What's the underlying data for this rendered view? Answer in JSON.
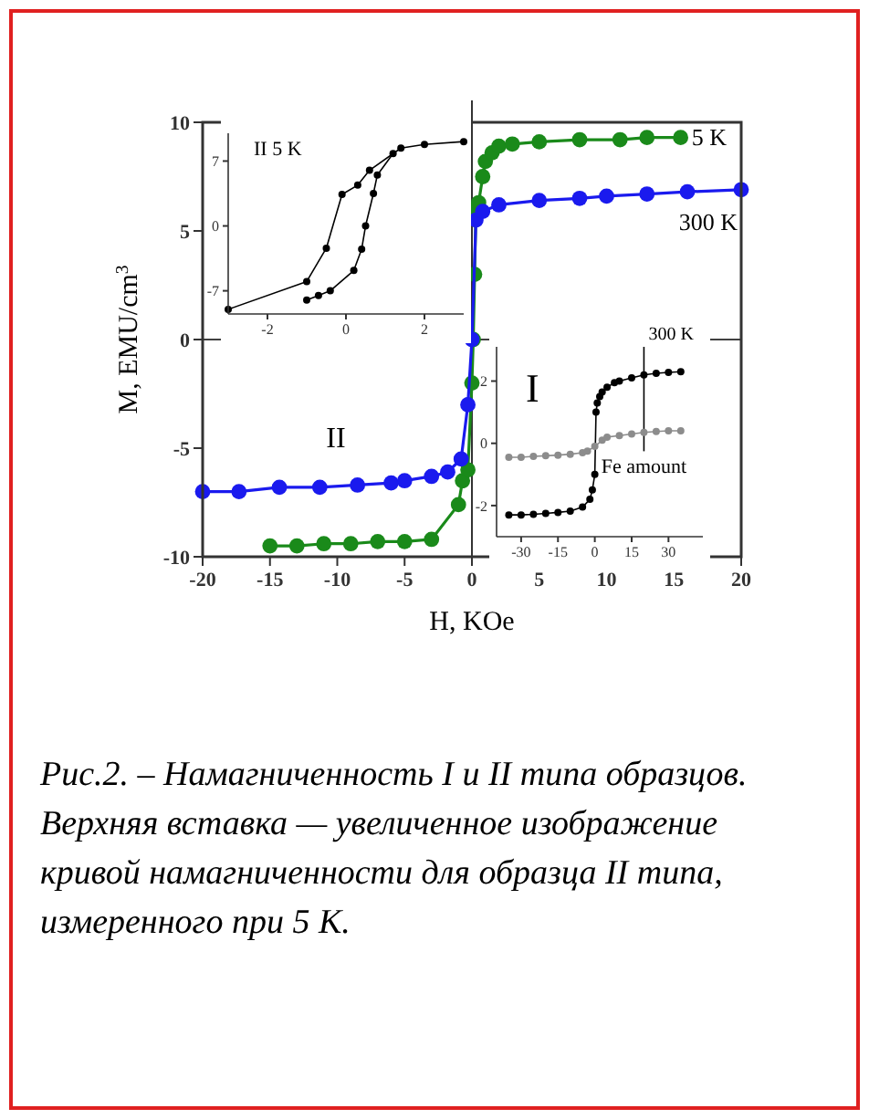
{
  "chart_data": [
    {
      "type": "line",
      "xlabel": "H, KOe",
      "ylabel": "M, EMU/cm$^{3}$",
      "xlim": [
        -20,
        20
      ],
      "ylim": [
        -10,
        10
      ],
      "xticks": [
        -20,
        -15,
        -10,
        -5,
        0,
        5,
        10,
        15,
        20
      ],
      "yticks": [
        -10,
        -5,
        0,
        5,
        10
      ],
      "marker": "circle",
      "ref_lines": [
        {
          "axis": "x",
          "value": 0
        },
        {
          "axis": "y",
          "value": 0
        }
      ],
      "annotations": [
        "II",
        "Рис.2. – Намагниченность I и II типа образцов. Верхняя вставка — увеличенное изображение кривой намагниченности для образца II типа, измеренного при 5 K."
      ],
      "series": [
        {
          "name": "5 K",
          "color": "#1a8a1a",
          "x": [
            -15,
            -13,
            -11,
            -9,
            -7,
            -5,
            -3,
            -1,
            -0.7,
            -0.3,
            0,
            0.1,
            0.2,
            0.3,
            0.5,
            0.8,
            1,
            1.5,
            2,
            3,
            5,
            8,
            11,
            13,
            15.5
          ],
          "values": [
            -9.5,
            -9.5,
            -9.4,
            -9.4,
            -9.3,
            -9.3,
            -9.2,
            -7.6,
            -6.5,
            -6,
            -2,
            0,
            3,
            6.0,
            6.3,
            7.5,
            8.2,
            8.6,
            8.9,
            9.0,
            9.1,
            9.2,
            9.2,
            9.3,
            9.3
          ]
        },
        {
          "name": "300 K",
          "color": "#1a1aee",
          "x": [
            -20,
            -17.3,
            -14.3,
            -11.3,
            -8.5,
            -6,
            -5,
            -3,
            -1.8,
            -0.8,
            -0.3,
            0,
            0.3,
            0.8,
            2,
            5,
            8,
            10,
            13,
            16,
            20
          ],
          "values": [
            -7,
            -7,
            -6.8,
            -6.8,
            -6.7,
            -6.6,
            -6.5,
            -6.3,
            -6.1,
            -5.5,
            -3,
            0,
            5.5,
            5.9,
            6.2,
            6.4,
            6.5,
            6.6,
            6.7,
            6.8,
            6.9
          ]
        }
      ]
    },
    {
      "type": "line",
      "title": "II  5 K",
      "xlim": [
        -3,
        3
      ],
      "ylim": [
        -9.5,
        10
      ],
      "xticks": [
        -2,
        0,
        2
      ],
      "yticks": [
        -7,
        0,
        7
      ],
      "marker": "circle",
      "series": [
        {
          "color": "#000000",
          "x": [
            -3,
            -1,
            -0.5,
            -0.1,
            0.3,
            0.6,
            1.4,
            2,
            3
          ],
          "values": [
            -9,
            -6,
            -2.4,
            3.4,
            4.4,
            6,
            8.4,
            8.8,
            9.1
          ]
        },
        {
          "color": "#000000",
          "x": [
            -1,
            -0.7,
            -0.4,
            0.2,
            0.4,
            0.5,
            0.7,
            0.8,
            1.2
          ],
          "values": [
            -8,
            -7.5,
            -7,
            -4.8,
            -2.5,
            0,
            3.5,
            5.5,
            7.8
          ]
        }
      ]
    },
    {
      "type": "line",
      "title": "300 K",
      "xlim": [
        -40,
        44
      ],
      "ylim": [
        -3,
        3.1
      ],
      "xticks": [
        -30,
        -15,
        0,
        15,
        30
      ],
      "yticks": [
        -2,
        0,
        2
      ],
      "marker": "circle",
      "ref_lines": [
        {
          "axis": "x",
          "value": 20,
          "label": "Fe amount"
        }
      ],
      "annotations": [
        "I"
      ],
      "series": [
        {
          "color": "#000000",
          "x": [
            -35,
            -30,
            -25,
            -20,
            -15,
            -10,
            -5,
            -2,
            -1,
            0,
            0.5,
            1,
            2,
            3,
            5,
            8,
            10,
            15,
            20,
            25,
            30,
            35
          ],
          "values": [
            -2.3,
            -2.3,
            -2.28,
            -2.25,
            -2.22,
            -2.18,
            -2.05,
            -1.8,
            -1.5,
            -1,
            1,
            1.3,
            1.5,
            1.65,
            1.8,
            1.95,
            2.0,
            2.1,
            2.2,
            2.25,
            2.28,
            2.3
          ]
        },
        {
          "color": "#8c8c8c",
          "x": [
            -35,
            -30,
            -25,
            -20,
            -15,
            -10,
            -5,
            -3,
            0,
            3,
            5,
            10,
            15,
            20,
            25,
            30,
            35
          ],
          "values": [
            -0.45,
            -0.45,
            -0.42,
            -0.4,
            -0.38,
            -0.35,
            -0.3,
            -0.25,
            -0.1,
            0.1,
            0.2,
            0.25,
            0.3,
            0.35,
            0.38,
            0.4,
            0.4
          ]
        }
      ]
    }
  ]
}
